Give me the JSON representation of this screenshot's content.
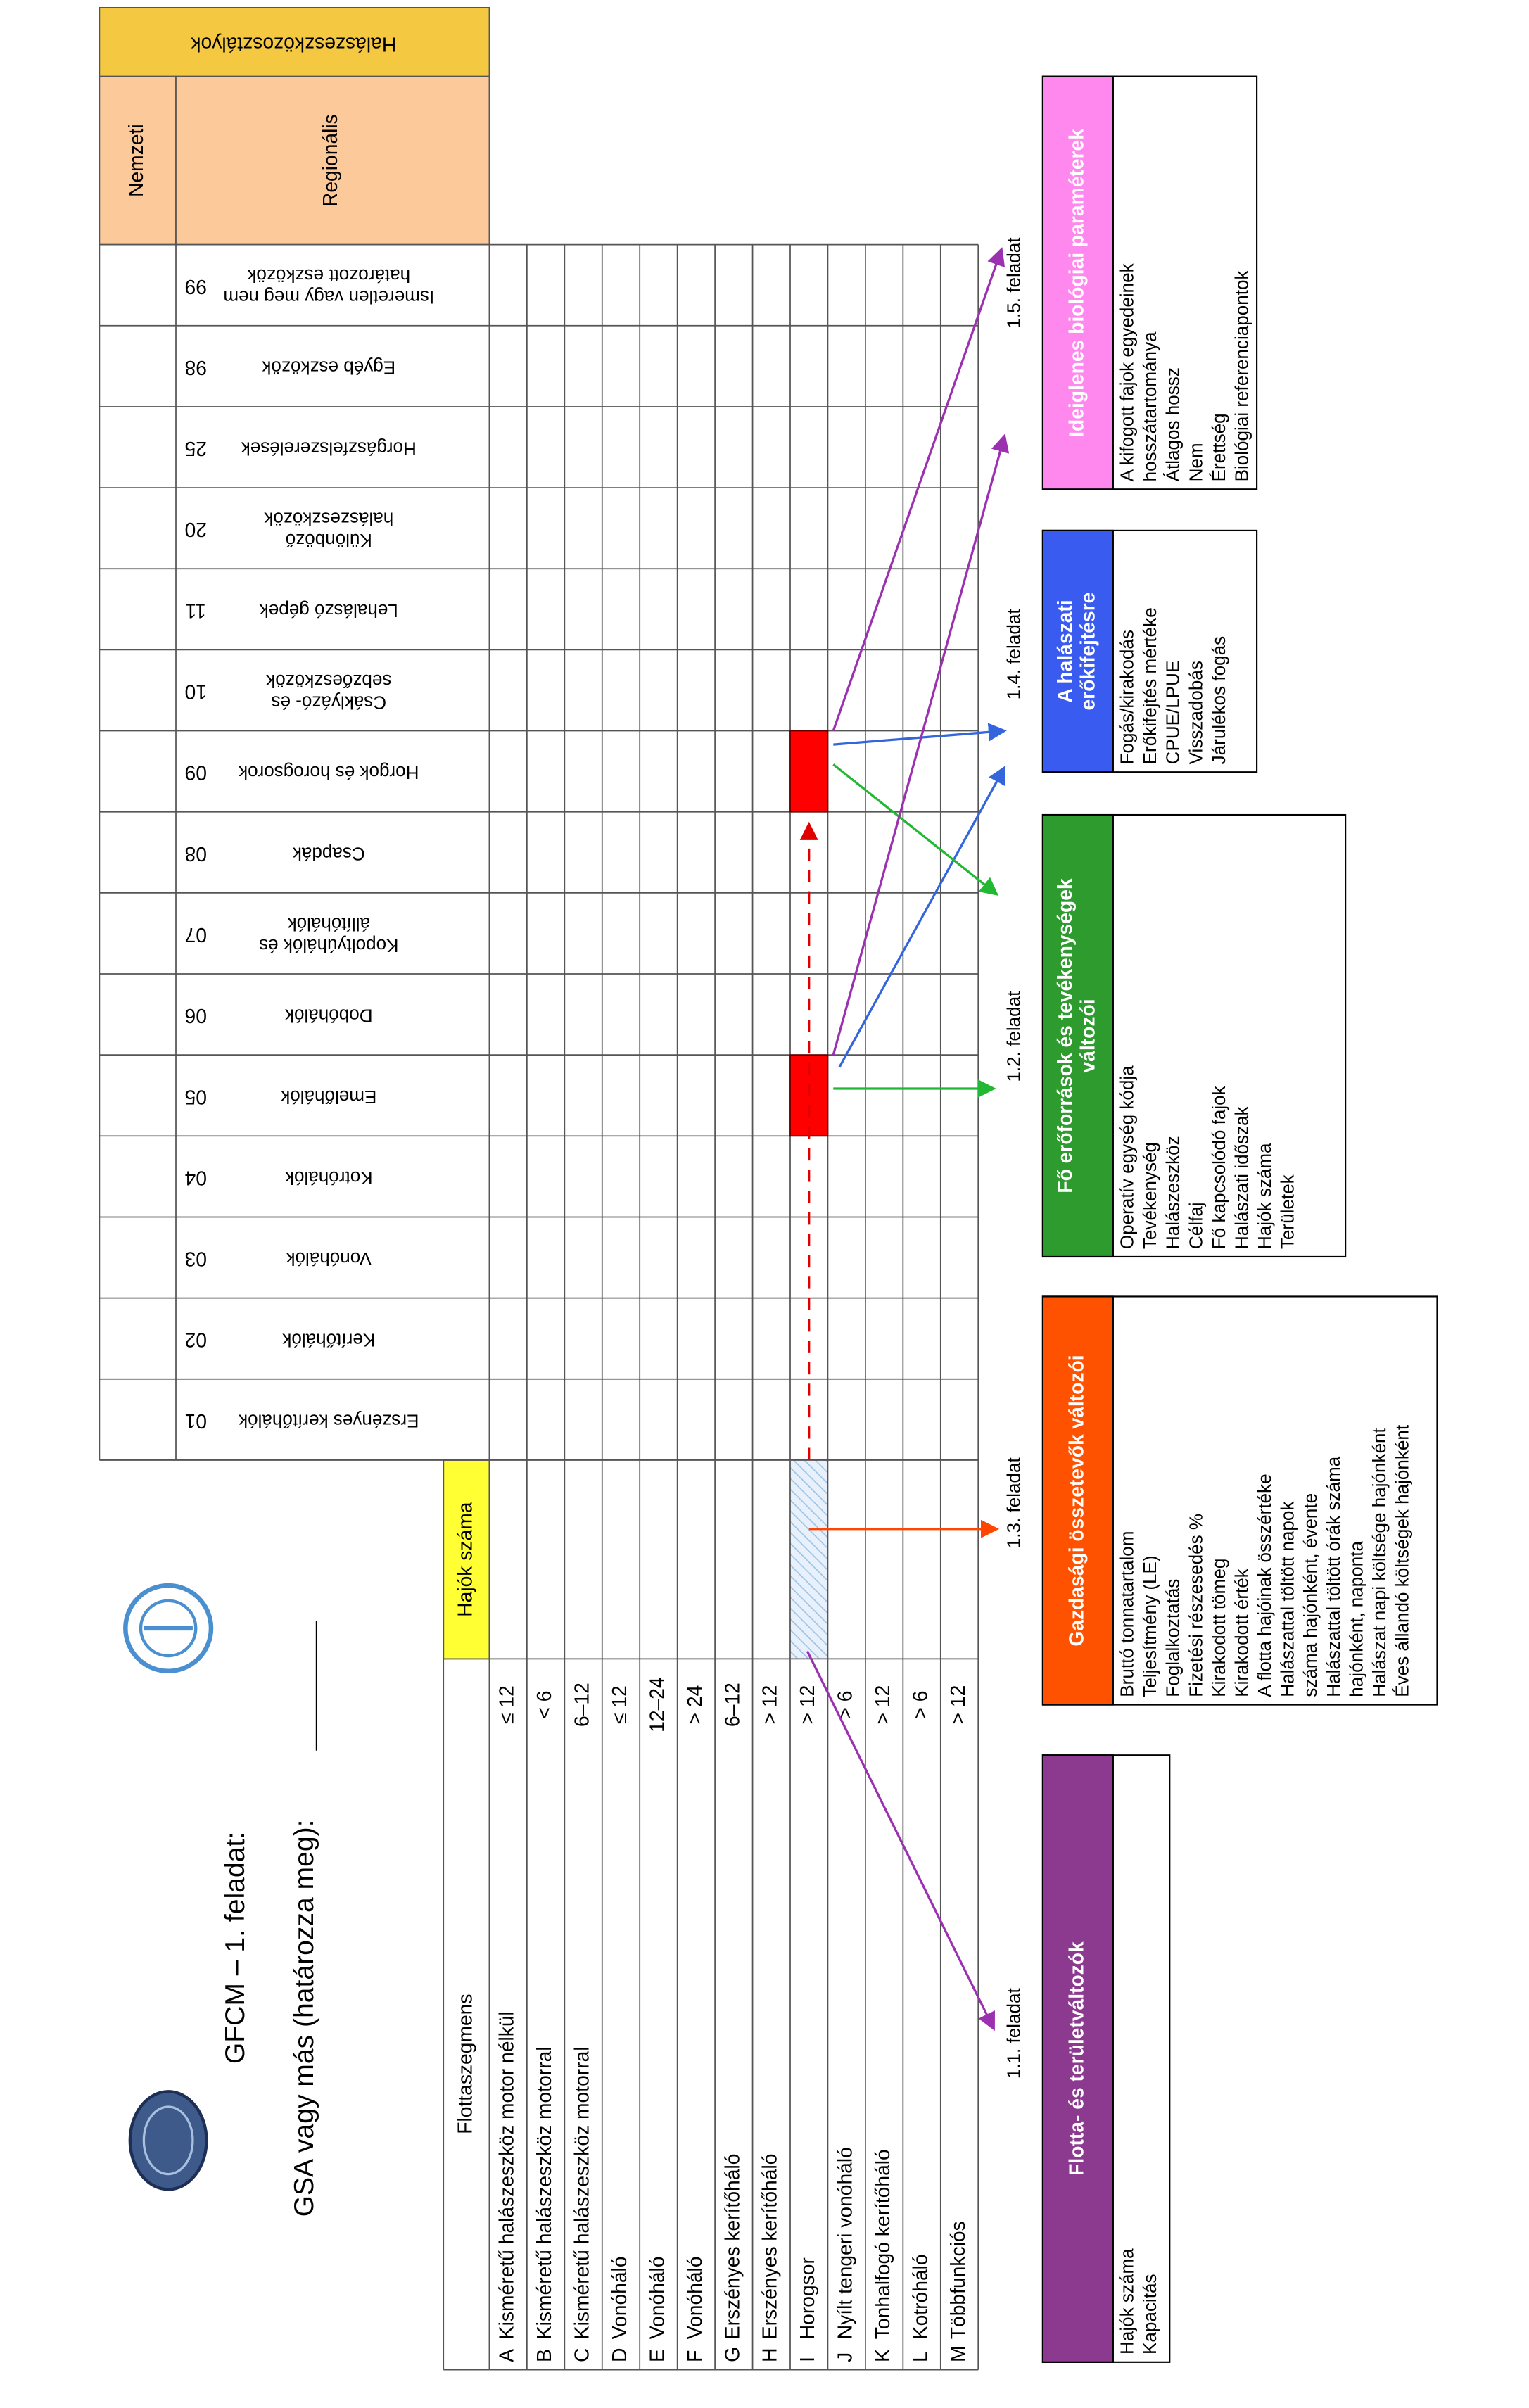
{
  "header": {
    "title": "GFCM – 1. feladat:",
    "subtitle": "GSA vagy más (határozza meg):"
  },
  "fleet_table": {
    "header": "Flottaszegmens",
    "count_header": "Hajók száma",
    "rows": [
      [
        "A",
        "Kisméretű halászeszköz motor nélkül",
        "≤ 12"
      ],
      [
        "B",
        "Kisméretű halászeszköz motorral",
        "< 6"
      ],
      [
        "C",
        "Kisméretű halászeszköz motorral",
        "6–12"
      ],
      [
        "D",
        "Vonóháló",
        "≤ 12"
      ],
      [
        "E",
        "Vonóháló",
        "12–24"
      ],
      [
        "F",
        "Vonóháló",
        "> 24"
      ],
      [
        "G",
        "Erszényes kerítőháló",
        "6–12"
      ],
      [
        "H",
        "Erszényes kerítőháló",
        "> 12"
      ],
      [
        "I",
        "Horogsor",
        "> 12"
      ],
      [
        "J",
        "Nyílt tengeri vonóháló",
        "> 6"
      ],
      [
        "K",
        "Tonhalfogó kerítőháló",
        "> 12"
      ],
      [
        "L",
        "Kotróháló",
        "> 6"
      ],
      [
        "M",
        "Többfunkciós",
        "> 12"
      ]
    ]
  },
  "gear_table": {
    "group_header": "Halászeszközosztályok",
    "national": "Nemzeti",
    "regional": "Regionális",
    "columns": [
      {
        "code": "01",
        "name": [
          "Erszényes kerítőhálók"
        ]
      },
      {
        "code": "02",
        "name": [
          "Kerítőhálók"
        ]
      },
      {
        "code": "03",
        "name": [
          "Vonóhálók"
        ]
      },
      {
        "code": "04",
        "name": [
          "Kotróhálók"
        ]
      },
      {
        "code": "05",
        "name": [
          "Emelőhálók"
        ]
      },
      {
        "code": "06",
        "name": [
          "Dobóhálók"
        ]
      },
      {
        "code": "07",
        "name": [
          "Kopoltyúhálók és",
          "állítóhálók"
        ]
      },
      {
        "code": "08",
        "name": [
          "Csapdák"
        ]
      },
      {
        "code": "09",
        "name": [
          "Horgok és horogsorok"
        ]
      },
      {
        "code": "10",
        "name": [
          "Csáklyázó- és",
          "sebzőeszközök"
        ]
      },
      {
        "code": "11",
        "name": [
          "Lehalászó gépek"
        ]
      },
      {
        "code": "20",
        "name": [
          "Különböző",
          "halászeszközök"
        ]
      },
      {
        "code": "25",
        "name": [
          "Horgászfelszerelések"
        ]
      },
      {
        "code": "98",
        "name": [
          "Egyéb eszközök"
        ]
      },
      {
        "code": "99",
        "name": [
          "Ismeretlen vagy meg nem",
          "határozott eszközök"
        ]
      }
    ]
  },
  "tasks": [
    "1.1. feladat",
    "1.2. feladat",
    "1.3. feladat",
    "1.4. feladat",
    "1.5. feladat"
  ],
  "boxes": [
    {
      "title": [
        "Flotta- és területváltozók"
      ],
      "color": "#8b3a8f",
      "items": [
        "Hajók száma",
        "Kapacitás"
      ]
    },
    {
      "title": [
        "Gazdasági összetevők változói"
      ],
      "color": "#ff5200",
      "items": [
        "Bruttó tonnatartalom",
        "Teljesítmény (LE)",
        "Foglalkoztatás",
        "Fizetési részesedés %",
        "Kirakodott tömeg",
        "Kirakodott érték",
        "A flotta hajóinak összértéke",
        "Halászattal töltött napok",
        "száma hajónként, évente",
        "Halászattal töltött órák száma",
        "hajónként, naponta",
        "Halászat napi költsége hajónként",
        "Éves állandó költségek hajónként"
      ]
    },
    {
      "title": [
        "Fő erőforrások és tevékenységek",
        "változói"
      ],
      "color": "#2e9b2e",
      "items": [
        "Operatív egység kódja",
        "Tevékenység",
        "Halászeszköz",
        "Célfaj",
        "Fő kapcsolódó fajok",
        "Halászati időszak",
        "Hajók száma",
        "Területek"
      ]
    },
    {
      "title": [
        "A halászati",
        "erőkifejtésre"
      ],
      "color": "#3a5bef",
      "items": [
        "Fogás/kirakodás",
        "Erőkifejtés mértéke",
        "CPUE/LPUE",
        "Visszadobás",
        "Járulékos fogás"
      ]
    },
    {
      "title": [
        "Ideiglenes biológiai paraméterek"
      ],
      "color": "#ff88ee",
      "items": [
        "A kifogott fajok egyedeinek",
        "hosszátartománya",
        "Átlagos hossz",
        "Nem",
        "Érettség",
        "Biológiai referenciapontok"
      ]
    }
  ]
}
